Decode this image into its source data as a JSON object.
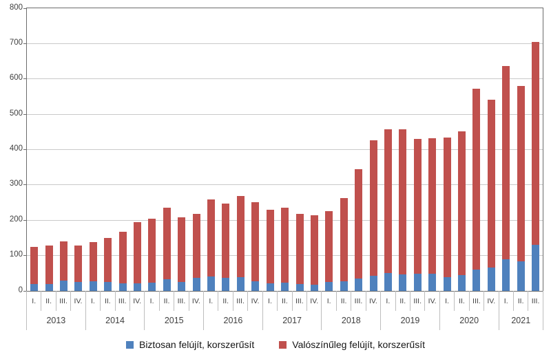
{
  "chart_data": {
    "type": "bar",
    "subtype": "stacked-column",
    "title": "",
    "xlabel": "",
    "ylabel": "",
    "ylim": [
      0,
      800
    ],
    "yticks": [
      0,
      100,
      200,
      300,
      400,
      500,
      600,
      700,
      800
    ],
    "grid": true,
    "legend_position": "bottom",
    "years": [
      {
        "label": "2013",
        "quarters": [
          "I.",
          "II.",
          "III.",
          "IV."
        ]
      },
      {
        "label": "2014",
        "quarters": [
          "I.",
          "II.",
          "III.",
          "IV."
        ]
      },
      {
        "label": "2015",
        "quarters": [
          "I.",
          "II.",
          "III.",
          "IV."
        ]
      },
      {
        "label": "2016",
        "quarters": [
          "I.",
          "II.",
          "III.",
          "IV."
        ]
      },
      {
        "label": "2017",
        "quarters": [
          "I.",
          "II.",
          "III.",
          "IV."
        ]
      },
      {
        "label": "2018",
        "quarters": [
          "I.",
          "II.",
          "III.",
          "IV."
        ]
      },
      {
        "label": "2019",
        "quarters": [
          "I.",
          "II.",
          "III.",
          "IV."
        ]
      },
      {
        "label": "2020",
        "quarters": [
          "I.",
          "II.",
          "III.",
          "IV."
        ]
      },
      {
        "label": "2021",
        "quarters": [
          "I.",
          "II.",
          "III."
        ]
      }
    ],
    "series": [
      {
        "name": "Biztosan felújít, korszerűsít",
        "color": "#4F81BD",
        "values": [
          19,
          20,
          29,
          26,
          27,
          26,
          22,
          21,
          23,
          33,
          26,
          37,
          41,
          37,
          39,
          27,
          21,
          23,
          19,
          18,
          26,
          28,
          36,
          42,
          50,
          46,
          48,
          48,
          39,
          45,
          60,
          67,
          90,
          84,
          130
        ]
      },
      {
        "name": "Valószínűleg felújít, korszerűsít",
        "color": "#C0504D",
        "values": [
          105,
          108,
          112,
          103,
          111,
          123,
          145,
          173,
          182,
          203,
          183,
          181,
          218,
          210,
          230,
          225,
          208,
          213,
          199,
          197,
          200,
          234,
          308,
          384,
          407,
          411,
          383,
          385,
          396,
          407,
          512,
          474,
          547,
          497,
          574
        ]
      }
    ],
    "stacked_totals": [
      124,
      128,
      141,
      129,
      138,
      149,
      167,
      194,
      205,
      236,
      209,
      218,
      259,
      247,
      269,
      252,
      229,
      236,
      218,
      215,
      226,
      262,
      344,
      426,
      457,
      457,
      431,
      433,
      435,
      452,
      572,
      541,
      637,
      581,
      704
    ]
  },
  "legend": {
    "items": [
      {
        "label": "Biztosan felújít, korszerűsít",
        "color": "#4F81BD"
      },
      {
        "label": "Valószínűleg felújít, korszerűsít",
        "color": "#C0504D"
      }
    ]
  }
}
